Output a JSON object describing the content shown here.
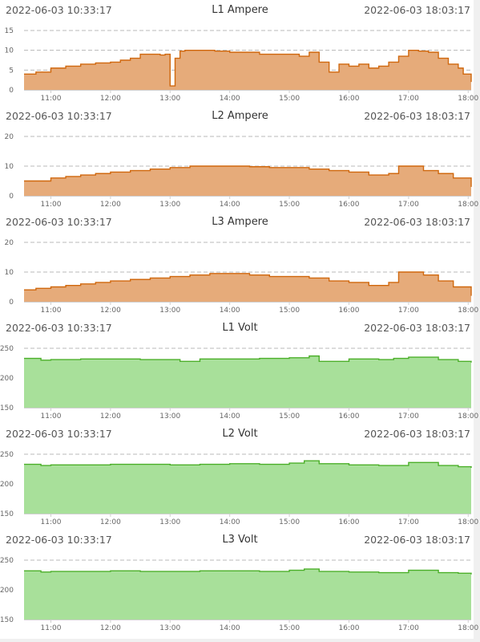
{
  "chart_data": [
    {
      "type": "area",
      "title": "L1 Ampere",
      "start_label": "2022-06-03 10:33:17",
      "end_label": "2022-06-03 18:03:17",
      "ylim": [
        0,
        15
      ],
      "yticks": [
        0,
        5,
        10,
        15
      ],
      "xlim": [
        "10:33",
        "18:03"
      ],
      "xticks": [
        "11:00",
        "12:00",
        "13:00",
        "14:00",
        "15:00",
        "16:00",
        "17:00",
        "18:00"
      ],
      "grid": true,
      "color": "#d0680e",
      "fill": "#e6ab7a",
      "x": [
        "10:33",
        "10:45",
        "11:00",
        "11:15",
        "11:30",
        "11:45",
        "12:00",
        "12:10",
        "12:20",
        "12:30",
        "12:40",
        "12:50",
        "12:55",
        "13:00",
        "13:05",
        "13:10",
        "13:15",
        "13:30",
        "13:45",
        "14:00",
        "14:15",
        "14:30",
        "14:45",
        "15:00",
        "15:10",
        "15:20",
        "15:30",
        "15:40",
        "15:50",
        "16:00",
        "16:10",
        "16:20",
        "16:30",
        "16:40",
        "16:50",
        "17:00",
        "17:10",
        "17:20",
        "17:30",
        "17:40",
        "17:50",
        "17:55",
        "18:03"
      ],
      "values": [
        4,
        4.5,
        5.5,
        6,
        6.5,
        6.8,
        7,
        7.5,
        8,
        9,
        9,
        8.8,
        9,
        1,
        8,
        9.8,
        10,
        10,
        9.8,
        9.5,
        9.5,
        9,
        9,
        9,
        8.5,
        9.5,
        7,
        4.5,
        6.5,
        6,
        6.5,
        5.5,
        6,
        7,
        8.5,
        10,
        9.8,
        9.5,
        8,
        6.5,
        5.5,
        4,
        2
      ]
    },
    {
      "type": "area",
      "title": "L2 Ampere",
      "start_label": "2022-06-03 10:33:17",
      "end_label": "2022-06-03 18:03:17",
      "ylim": [
        0,
        20
      ],
      "yticks": [
        0,
        10,
        20
      ],
      "xlim": [
        "10:33",
        "18:03"
      ],
      "xticks": [
        "11:00",
        "12:00",
        "13:00",
        "14:00",
        "15:00",
        "16:00",
        "17:00",
        "18:00"
      ],
      "grid": true,
      "color": "#d0680e",
      "fill": "#e6ab7a",
      "x": [
        "10:33",
        "10:45",
        "11:00",
        "11:15",
        "11:30",
        "11:45",
        "12:00",
        "12:20",
        "12:40",
        "13:00",
        "13:20",
        "13:40",
        "14:00",
        "14:20",
        "14:40",
        "15:00",
        "15:20",
        "15:40",
        "16:00",
        "16:20",
        "16:40",
        "16:50",
        "17:00",
        "17:15",
        "17:30",
        "17:45",
        "18:03"
      ],
      "values": [
        5,
        5,
        6,
        6.5,
        7,
        7.5,
        8,
        8.5,
        9,
        9.5,
        10,
        10,
        10,
        9.8,
        9.5,
        9.5,
        9,
        8.5,
        8,
        7,
        7.5,
        10,
        10,
        8.5,
        7.5,
        6,
        3
      ]
    },
    {
      "type": "area",
      "title": "L3 Ampere",
      "start_label": "2022-06-03 10:33:17",
      "end_label": "2022-06-03 18:03:17",
      "ylim": [
        0,
        20
      ],
      "yticks": [
        0,
        10,
        20
      ],
      "xlim": [
        "10:33",
        "18:03"
      ],
      "xticks": [
        "11:00",
        "12:00",
        "13:00",
        "14:00",
        "15:00",
        "16:00",
        "17:00",
        "18:00"
      ],
      "grid": true,
      "color": "#d0680e",
      "fill": "#e6ab7a",
      "x": [
        "10:33",
        "10:45",
        "11:00",
        "11:15",
        "11:30",
        "11:45",
        "12:00",
        "12:20",
        "12:40",
        "13:00",
        "13:20",
        "13:40",
        "14:00",
        "14:20",
        "14:40",
        "15:00",
        "15:20",
        "15:40",
        "16:00",
        "16:20",
        "16:40",
        "16:50",
        "17:00",
        "17:15",
        "17:30",
        "17:45",
        "18:03"
      ],
      "values": [
        4,
        4.5,
        5,
        5.5,
        6,
        6.5,
        7,
        7.5,
        8,
        8.5,
        9,
        9.5,
        9.5,
        9,
        8.5,
        8.5,
        8,
        7,
        6.5,
        5.5,
        6.5,
        10,
        10,
        9,
        7,
        5,
        2
      ]
    },
    {
      "type": "area",
      "title": "L1 Volt",
      "start_label": "2022-06-03 10:33:17",
      "end_label": "2022-06-03 18:03:17",
      "ylim": [
        150,
        250
      ],
      "yticks": [
        150,
        200,
        250
      ],
      "xlim": [
        "10:33",
        "18:03"
      ],
      "xticks": [
        "11:00",
        "12:00",
        "13:00",
        "14:00",
        "15:00",
        "16:00",
        "17:00",
        "18:00"
      ],
      "grid": true,
      "color": "#4caf2a",
      "fill": "#a8e09a",
      "x": [
        "10:33",
        "10:50",
        "11:00",
        "11:30",
        "12:00",
        "12:30",
        "13:00",
        "13:10",
        "13:30",
        "14:00",
        "14:30",
        "15:00",
        "15:20",
        "15:30",
        "16:00",
        "16:30",
        "16:45",
        "17:00",
        "17:30",
        "17:50",
        "18:03"
      ],
      "values": [
        233,
        230,
        231,
        232,
        232,
        231,
        231,
        228,
        232,
        232,
        233,
        234,
        237,
        228,
        232,
        231,
        233,
        235,
        231,
        228,
        226
      ]
    },
    {
      "type": "area",
      "title": "L2 Volt",
      "start_label": "2022-06-03 10:33:17",
      "end_label": "2022-06-03 18:03:17",
      "ylim": [
        150,
        250
      ],
      "yticks": [
        150,
        200,
        250
      ],
      "xlim": [
        "10:33",
        "18:03"
      ],
      "xticks": [
        "11:00",
        "12:00",
        "13:00",
        "14:00",
        "15:00",
        "16:00",
        "17:00",
        "18:00"
      ],
      "grid": true,
      "color": "#4caf2a",
      "fill": "#a8e09a",
      "x": [
        "10:33",
        "10:50",
        "11:00",
        "11:30",
        "12:00",
        "12:30",
        "13:00",
        "13:30",
        "14:00",
        "14:30",
        "15:00",
        "15:15",
        "15:30",
        "16:00",
        "16:30",
        "17:00",
        "17:30",
        "17:50",
        "18:03"
      ],
      "values": [
        233,
        231,
        232,
        232,
        233,
        233,
        232,
        233,
        234,
        233,
        235,
        239,
        234,
        232,
        231,
        236,
        231,
        229,
        227
      ]
    },
    {
      "type": "area",
      "title": "L3 Volt",
      "start_label": "2022-06-03 10:33:17",
      "end_label": "2022-06-03 18:03:17",
      "ylim": [
        150,
        250
      ],
      "yticks": [
        150,
        200,
        250
      ],
      "xlim": [
        "10:33",
        "18:03"
      ],
      "xticks": [
        "11:00",
        "12:00",
        "13:00",
        "14:00",
        "15:00",
        "16:00",
        "17:00",
        "18:00"
      ],
      "grid": true,
      "color": "#4caf2a",
      "fill": "#a8e09a",
      "x": [
        "10:33",
        "10:50",
        "11:00",
        "11:30",
        "12:00",
        "12:30",
        "13:00",
        "13:30",
        "14:00",
        "14:30",
        "15:00",
        "15:15",
        "15:30",
        "16:00",
        "16:30",
        "17:00",
        "17:30",
        "17:50",
        "18:03"
      ],
      "values": [
        232,
        230,
        231,
        231,
        232,
        231,
        231,
        232,
        232,
        231,
        233,
        235,
        231,
        230,
        229,
        233,
        229,
        228,
        226
      ]
    }
  ]
}
